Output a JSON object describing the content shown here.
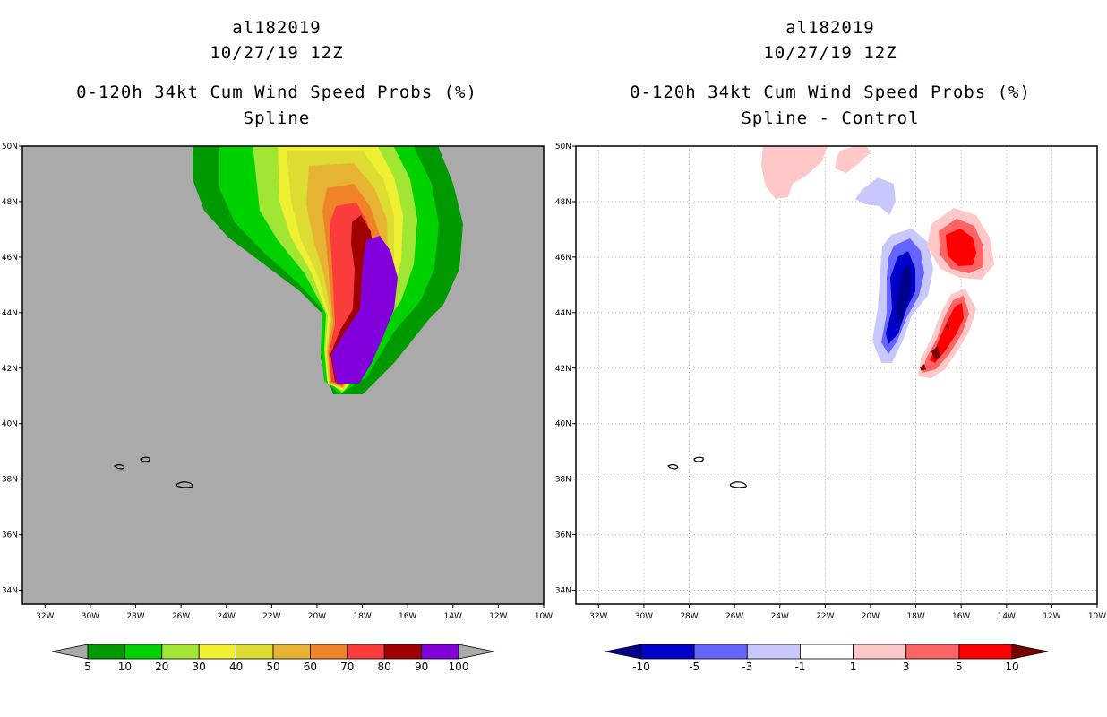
{
  "left_panel": {
    "storm_id": "al182019",
    "datetime": "10/27/19 12Z",
    "product": "0-120h 34kt Cum Wind Speed Probs (%)",
    "method": "Spline",
    "colorbar": {
      "labels": [
        "5",
        "10",
        "20",
        "30",
        "40",
        "50",
        "60",
        "70",
        "80",
        "90",
        "100"
      ],
      "colors": [
        "#009a00",
        "#00d200",
        "#a0e632",
        "#f0f032",
        "#dcdc32",
        "#e6b432",
        "#f08228",
        "#fa3c3c",
        "#a00000",
        "#8200dc"
      ],
      "under_color": "#aaaaaa",
      "over_color": "#aaaaaa"
    },
    "background_color": "#aaaaaa"
  },
  "right_panel": {
    "storm_id": "al182019",
    "datetime": "10/27/19 12Z",
    "product": "0-120h 34kt Cum Wind Speed Probs (%)",
    "method": "Spline - Control",
    "colorbar": {
      "labels": [
        "-10",
        "-5",
        "-3",
        "-1",
        "1",
        "3",
        "5",
        "10"
      ],
      "colors": [
        "#0000c8",
        "#6464ff",
        "#c8c8ff",
        "#ffffff",
        "#ffc8c8",
        "#ff6464",
        "#ff0000"
      ],
      "under_color": "#00008c",
      "over_color": "#780000"
    },
    "background_color": "#ffffff"
  },
  "axes": {
    "lon_min": -33,
    "lon_max": -10,
    "lat_min": 33.5,
    "lat_max": 50,
    "lon_ticks": [
      "32W",
      "30W",
      "28W",
      "26W",
      "24W",
      "22W",
      "20W",
      "18W",
      "16W",
      "14W",
      "12W",
      "10W"
    ],
    "lon_tick_values": [
      -32,
      -30,
      -28,
      -26,
      -24,
      -22,
      -20,
      -18,
      -16,
      -14,
      -12,
      -10
    ],
    "lat_ticks": [
      "34N",
      "36N",
      "38N",
      "40N",
      "42N",
      "44N",
      "46N",
      "48N",
      "50N"
    ],
    "lat_tick_values": [
      34,
      36,
      38,
      40,
      42,
      44,
      46,
      48,
      50
    ]
  },
  "chart_data": [
    {
      "type": "heatmap",
      "title": "0-120h 34kt Cum Wind Speed Probs (%)",
      "subtitle": "Spline",
      "units": "%",
      "levels": [
        5,
        10,
        20,
        30,
        40,
        50,
        60,
        70,
        80,
        90,
        100
      ],
      "features": [
        {
          "name": "wind probability swath",
          "max_value": 100,
          "peak_lon": -17.2,
          "peak_lat": 44.0,
          "orientation": "north-south, curving west toward 42N"
        }
      ]
    },
    {
      "type": "heatmap",
      "title": "0-120h 34kt Cum Wind Speed Probs (%)",
      "subtitle": "Spline - Control",
      "units": "%",
      "levels": [
        -10,
        -5,
        -3,
        -1,
        1,
        3,
        5,
        10
      ],
      "features": [
        {
          "name": "negative difference",
          "min_value": -10,
          "peak_lon": -18.4,
          "peak_lat": 44.6
        },
        {
          "name": "positive difference (north)",
          "max_value": 5,
          "peak_lon": -16.0,
          "peak_lat": 46.1
        },
        {
          "name": "positive difference (south)",
          "max_value": 10,
          "peak_lon": -17.0,
          "peak_lat": 42.8
        }
      ]
    }
  ]
}
